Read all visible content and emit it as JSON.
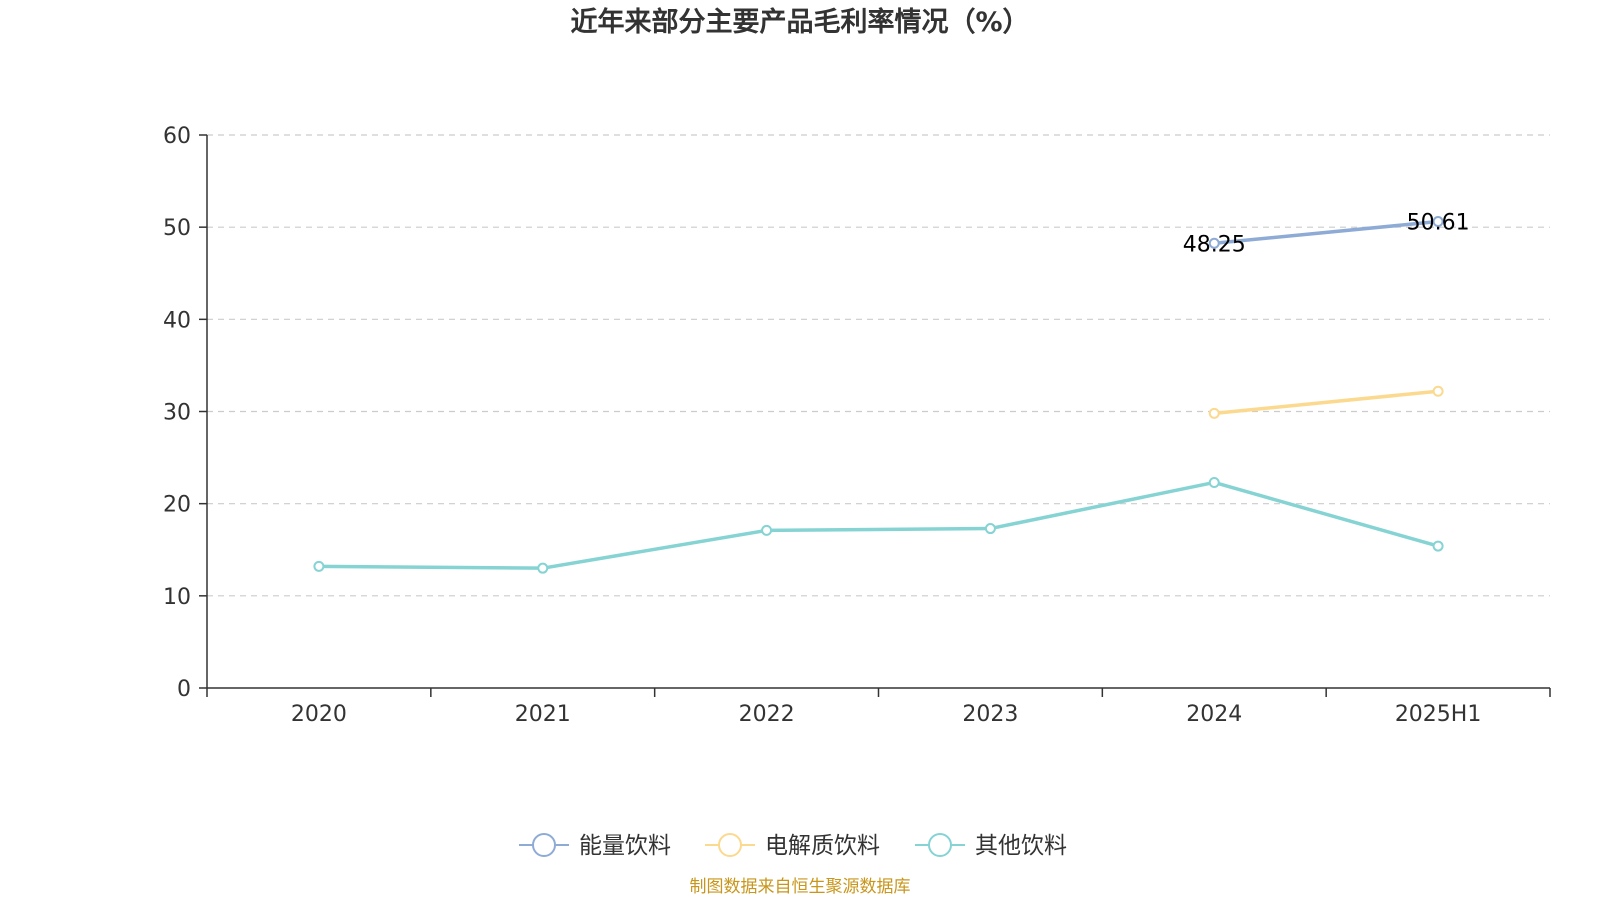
{
  "chart_data": {
    "type": "line",
    "title": "近年来部分主要产品毛利率情况（%）",
    "categories": [
      "2020",
      "2021",
      "2022",
      "2023",
      "2024",
      "2025H1"
    ],
    "ylim": [
      0,
      60
    ],
    "yticks": [
      0,
      10,
      20,
      30,
      40,
      50,
      60
    ],
    "grid": true,
    "legend_position": "bottom-center",
    "series": [
      {
        "name": "能量饮料",
        "color": "#8eabd6",
        "values": [
          null,
          null,
          null,
          null,
          48.25,
          50.61
        ],
        "labels": [
          null,
          null,
          null,
          null,
          "48.25",
          "50.61"
        ]
      },
      {
        "name": "电解质饮料",
        "color": "#fbd98f",
        "values": [
          null,
          null,
          null,
          null,
          29.8,
          32.2
        ],
        "labels": [
          null,
          null,
          null,
          null,
          null,
          null
        ]
      },
      {
        "name": "其他饮料",
        "color": "#86d3d4",
        "values": [
          13.2,
          13.0,
          17.1,
          17.3,
          22.3,
          15.4
        ],
        "labels": [
          null,
          null,
          null,
          null,
          null,
          null
        ]
      }
    ]
  },
  "source": {
    "text": "制图数据来自恒生聚源数据库",
    "color": "#c8961c"
  },
  "colors": {
    "axis": "#333333",
    "grid": "#cccccc",
    "text": "#333333"
  }
}
